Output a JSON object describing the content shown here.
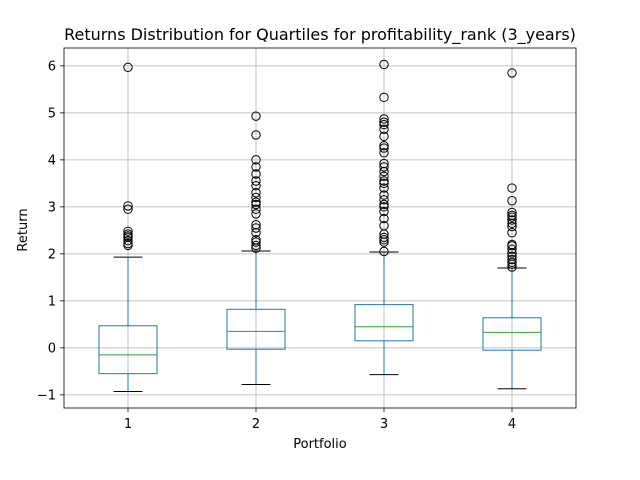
{
  "chart_data": {
    "type": "box",
    "title": "Returns Distribution for Quartiles for profitability_rank (3_years)",
    "xlabel": "Portfolio",
    "ylabel": "Return",
    "ylim": [
      -1.28,
      6.38
    ],
    "yticks": [
      -1,
      0,
      1,
      2,
      3,
      4,
      5,
      6
    ],
    "grid": true,
    "colors": {
      "box": "#1f77b4",
      "median": "#2ca02c",
      "whisker": "#1f77b4",
      "cap": "#000000",
      "flier": "#000000",
      "grid": "#b0b0b0"
    },
    "categories": [
      "1",
      "2",
      "3",
      "4"
    ],
    "boxes": [
      {
        "label": "1",
        "whisker_low": -0.93,
        "q1": -0.55,
        "median": -0.15,
        "q3": 0.47,
        "whisker_high": 1.93,
        "fliers": [
          2.18,
          2.22,
          2.28,
          2.35,
          2.38,
          2.42,
          2.48,
          2.95,
          3.02,
          5.97
        ]
      },
      {
        "label": "2",
        "whisker_low": -0.78,
        "q1": -0.03,
        "median": 0.35,
        "q3": 0.82,
        "whisker_high": 2.06,
        "fliers": [
          2.12,
          2.18,
          2.25,
          2.3,
          2.45,
          2.55,
          2.62,
          2.85,
          2.95,
          3.05,
          3.1,
          3.2,
          3.3,
          3.45,
          3.55,
          3.7,
          3.85,
          4.0,
          4.53,
          4.93
        ]
      },
      {
        "label": "3",
        "whisker_low": -0.57,
        "q1": 0.15,
        "median": 0.45,
        "q3": 0.92,
        "whisker_high": 2.04,
        "fliers": [
          2.05,
          2.25,
          2.3,
          2.35,
          2.42,
          2.6,
          2.75,
          2.9,
          3.0,
          3.05,
          3.15,
          3.25,
          3.4,
          3.5,
          3.55,
          3.65,
          3.75,
          3.85,
          3.92,
          4.15,
          4.25,
          4.3,
          4.5,
          4.65,
          4.75,
          4.8,
          4.87,
          5.33,
          6.03
        ]
      },
      {
        "label": "4",
        "whisker_low": -0.87,
        "q1": -0.05,
        "median": 0.33,
        "q3": 0.64,
        "whisker_high": 1.7,
        "fliers": [
          1.72,
          1.78,
          1.82,
          1.88,
          1.95,
          2.02,
          2.1,
          2.17,
          2.2,
          2.45,
          2.58,
          2.65,
          2.72,
          2.78,
          2.82,
          2.88,
          3.13,
          3.4,
          5.85
        ]
      }
    ]
  }
}
